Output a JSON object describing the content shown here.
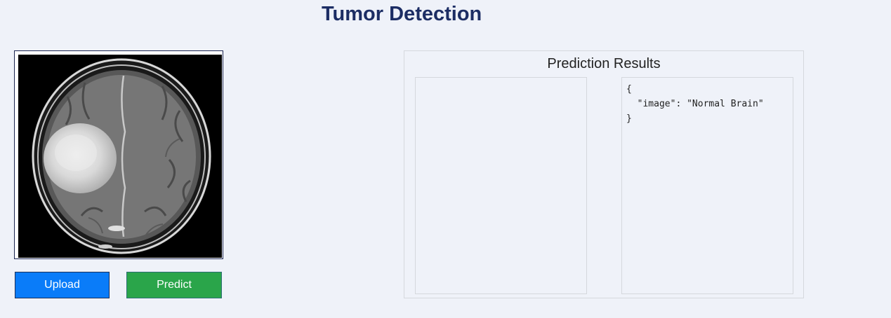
{
  "page": {
    "title": "Tumor Detection"
  },
  "image_panel": {
    "image_alt": "Brain MRI scan"
  },
  "actions": {
    "upload_label": "Upload",
    "predict_label": "Predict"
  },
  "results": {
    "title": "Prediction Results",
    "json_text": "{\n  \"image\": \"Normal Brain\"\n}"
  },
  "colors": {
    "background": "#eff2f9",
    "title": "#1c2d64",
    "upload_button": "#0a7cf9",
    "predict_button": "#2aa54a"
  }
}
